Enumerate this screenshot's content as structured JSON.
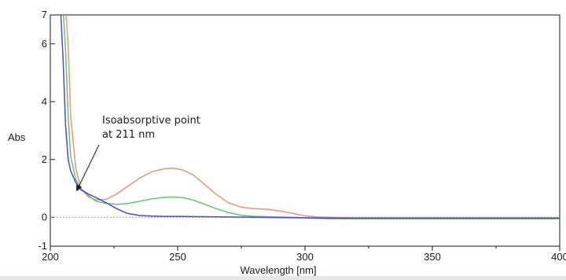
{
  "chart_data": {
    "type": "line",
    "xlabel": "Wavelength [nm]",
    "ylabel": "Abs",
    "xlim": [
      200,
      400
    ],
    "ylim": [
      -1,
      7
    ],
    "x_ticks": [
      200,
      250,
      300,
      350,
      400
    ],
    "x_tick_labels": [
      "200",
      "250",
      "300",
      "350",
      "400"
    ],
    "y_ticks": [
      -1,
      0,
      2,
      4,
      6,
      7
    ],
    "y_tick_labels": [
      "-1",
      "0",
      "2",
      "4",
      "6",
      "7"
    ],
    "grid": false,
    "baseline_y": 0,
    "annotation": {
      "lines": [
        "Isoabsorptive point",
        "at 211 nm"
      ],
      "points_to": {
        "x": 211,
        "y": 1.0
      }
    },
    "series": [
      {
        "color": "#e5957a",
        "x": [
          206,
          207,
          208,
          210,
          212,
          215,
          218,
          222,
          226,
          230,
          235,
          240,
          245,
          248,
          252,
          256,
          260,
          265,
          270,
          275,
          280,
          285,
          290,
          295,
          300,
          305,
          310,
          320,
          350,
          400
        ],
        "y": [
          7.2,
          6.0,
          3.5,
          1.7,
          1.0,
          0.7,
          0.6,
          0.62,
          0.8,
          1.05,
          1.35,
          1.58,
          1.68,
          1.7,
          1.64,
          1.47,
          1.18,
          0.8,
          0.5,
          0.35,
          0.3,
          0.28,
          0.22,
          0.14,
          0.05,
          0.01,
          0.0,
          -0.02,
          -0.02,
          -0.02
        ]
      },
      {
        "color": "#6cc26c",
        "x": [
          205,
          206,
          207,
          208,
          210,
          212,
          215,
          218,
          222,
          226,
          230,
          235,
          240,
          245,
          248,
          252,
          256,
          260,
          265,
          270,
          275,
          280,
          285,
          290,
          295,
          300,
          305,
          310,
          320,
          350,
          400
        ],
        "y": [
          7.2,
          5.8,
          3.5,
          2.1,
          1.3,
          1.0,
          0.75,
          0.55,
          0.48,
          0.45,
          0.47,
          0.55,
          0.64,
          0.69,
          0.7,
          0.68,
          0.6,
          0.47,
          0.3,
          0.16,
          0.07,
          0.03,
          0.02,
          0.01,
          0.0,
          -0.02,
          -0.04,
          -0.05,
          -0.05,
          -0.05,
          -0.05
        ]
      },
      {
        "color": "#4a4ad6",
        "x": [
          204,
          205,
          206,
          207,
          208,
          210,
          212,
          215,
          218,
          222,
          226,
          230,
          235,
          240,
          245,
          250,
          260,
          270,
          280,
          290,
          300,
          320,
          350,
          400
        ],
        "y": [
          7.2,
          5.5,
          3.2,
          2.0,
          1.6,
          1.2,
          0.95,
          0.8,
          0.68,
          0.5,
          0.3,
          0.14,
          0.06,
          0.04,
          0.03,
          0.03,
          0.02,
          0.01,
          0.0,
          -0.01,
          -0.02,
          -0.03,
          -0.03,
          -0.03
        ]
      }
    ]
  }
}
